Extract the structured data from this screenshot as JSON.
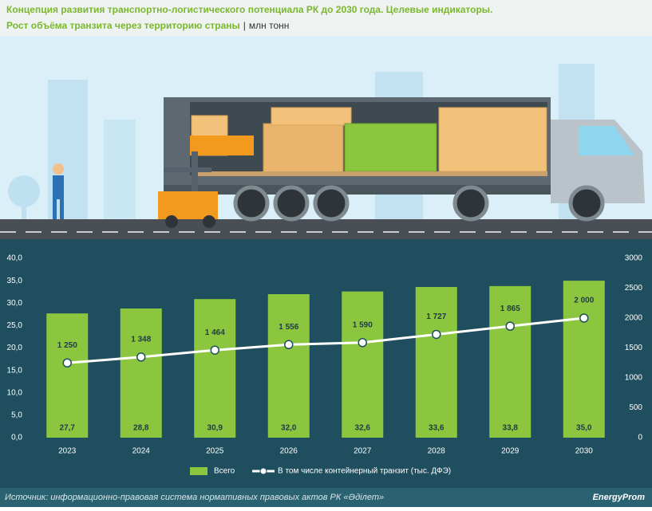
{
  "title": "Концепция развития транспортно-логистического потенциала РК до 2030 года. Целевые индикаторы.",
  "subtitle": "Рост объёма транзита через территорию страны",
  "unit": "млн тонн",
  "chart_data": {
    "type": "bar_line",
    "categories": [
      "2023",
      "2024",
      "2025",
      "2026",
      "2027",
      "2028",
      "2029",
      "2030"
    ],
    "series": [
      {
        "name": "Всего",
        "type": "bar",
        "color": "#8cc63f",
        "values": [
          27.7,
          28.8,
          30.9,
          32.0,
          32.6,
          33.6,
          33.8,
          35.0
        ],
        "value_labels": [
          "27,7",
          "28,8",
          "30,9",
          "32,0",
          "32,6",
          "33,6",
          "33,8",
          "35,0"
        ]
      },
      {
        "name": "В том числе контейнерный транзит (тыс. ДФЭ)",
        "type": "line",
        "axis": "y2",
        "color": "#ffffff",
        "values": [
          1250,
          1348,
          1464,
          1556,
          1590,
          1727,
          1865,
          2000
        ],
        "value_labels": [
          "1 250",
          "1 348",
          "1 464",
          "1 556",
          "1 590",
          "1 727",
          "1 865",
          "2 000"
        ]
      }
    ],
    "ylim": [
      0,
      40
    ],
    "yticks": [
      {
        "value": 0,
        "label": "0,0"
      },
      {
        "value": 5,
        "label": "5,0"
      },
      {
        "value": 10,
        "label": "10,0"
      },
      {
        "value": 15,
        "label": "15,0"
      },
      {
        "value": 20,
        "label": "20,0"
      },
      {
        "value": 25,
        "label": "25,0"
      },
      {
        "value": 30,
        "label": "30,0"
      },
      {
        "value": 35,
        "label": "35,0"
      },
      {
        "value": 40,
        "label": "40,0"
      }
    ],
    "y2lim": [
      0,
      3000
    ],
    "y2ticks": [
      0,
      500,
      1000,
      1500,
      2000,
      2500,
      3000
    ]
  },
  "source": "Источник: информационно-правовая система нормативных правовых актов РК «Әділет»",
  "logo": "EnergyProm"
}
